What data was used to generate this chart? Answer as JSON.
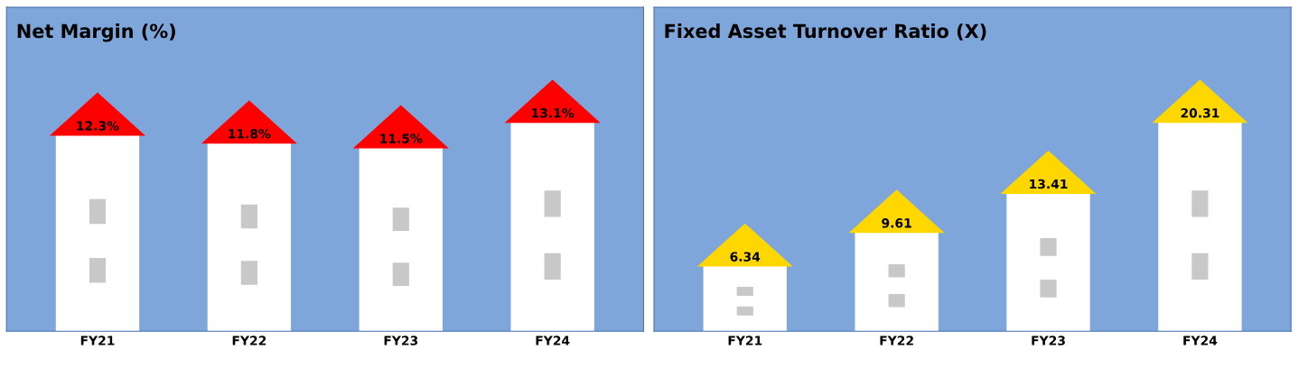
{
  "chart_data": [
    {
      "type": "bar",
      "title": "Net Margin (%)",
      "categories": [
        "FY21",
        "FY22",
        "FY23",
        "FY24"
      ],
      "series": [
        {
          "color": "#ffffff",
          "values": [
            12.3,
            11.8,
            11.5,
            13.1
          ],
          "value_labels": [
            "12.3%",
            "11.8%",
            "11.5%",
            "13.1%"
          ]
        }
      ]
    },
    {
      "type": "bar",
      "title": "Fixed Asset Turnover Ratio (X)",
      "categories": [
        "FY21",
        "FY22",
        "FY23",
        "FY24"
      ],
      "series": [
        {
          "color": "#ffffff",
          "values": [
            6.34,
            9.61,
            13.41,
            20.31
          ]
        }
      ],
      "data_labels": true
    }
  ]
}
